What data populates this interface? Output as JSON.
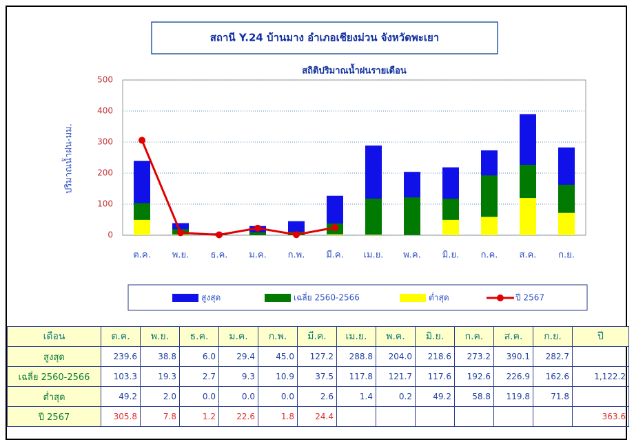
{
  "chart_data": {
    "type": "bar",
    "title": "สถานี Y.24 บ้านมาง อำเภอเชียงม่วน จังหวัดพะเยา",
    "subtitle": "สถิติปริมาณน้ำฝนรายเดือน",
    "y_label": "ปริมาณน้ำฝน-มม.",
    "categories": [
      "ต.ค.",
      "พ.ย.",
      "ธ.ค.",
      "ม.ค.",
      "ก.พ.",
      "มี.ค.",
      "เม.ย.",
      "พ.ค.",
      "มิ.ย.",
      "ก.ค.",
      "ส.ค.",
      "ก.ย."
    ],
    "ylim": [
      0,
      500
    ],
    "yticks": [
      0,
      100,
      200,
      300,
      400,
      500
    ],
    "grid": true,
    "series": [
      {
        "name": "สูงสุด",
        "color": "#1010e8",
        "kind": "bar",
        "values": [
          239.6,
          38.8,
          6.0,
          29.4,
          45.0,
          127.2,
          288.8,
          204.0,
          218.6,
          273.2,
          390.1,
          282.7
        ],
        "value_labels": [
          "239.6",
          "38.8",
          "6.0",
          "29.4",
          "45.0",
          "127.2",
          "288.8",
          "204.0",
          "218.6",
          "273.2",
          "390.1",
          "282.7"
        ]
      },
      {
        "name": "เฉลี่ย 2560-2566",
        "color": "#007a00",
        "kind": "bar",
        "values": [
          103.3,
          19.3,
          2.7,
          9.3,
          10.9,
          37.5,
          117.8,
          121.7,
          117.6,
          192.6,
          226.9,
          162.6
        ],
        "annual": "1,122.2"
      },
      {
        "name": "ต่ำสุด",
        "color": "#ffff00",
        "kind": "bar",
        "values": [
          49.2,
          2.0,
          0.0,
          0.0,
          0.0,
          2.6,
          1.4,
          0.2,
          49.2,
          58.8,
          119.8,
          71.8
        ],
        "value_labels": [
          "49.2",
          "2.0",
          "0.0",
          "0.0",
          "0.0",
          "2.6",
          "1.4",
          "0.2",
          "49.2",
          "58.8",
          "119.8",
          "71.8"
        ]
      },
      {
        "name": "ปี 2567",
        "color": "#e00000",
        "kind": "line",
        "values": [
          305.8,
          7.8,
          1.2,
          22.6,
          1.8,
          24.4,
          null,
          null,
          null,
          null,
          null,
          null
        ],
        "annual": "363.6"
      }
    ],
    "table": {
      "corner": "เดือน",
      "annual": "ปี"
    }
  }
}
